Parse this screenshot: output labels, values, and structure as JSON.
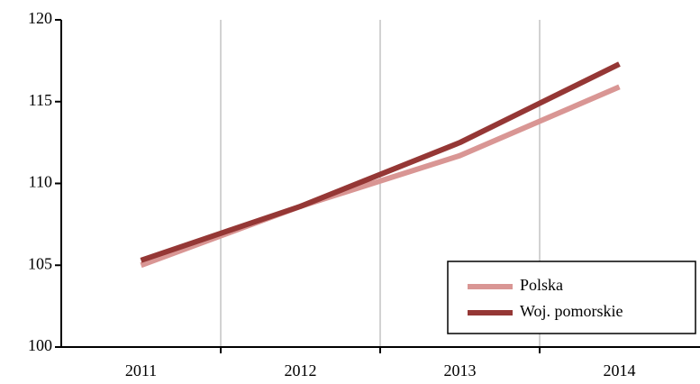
{
  "chart_data": {
    "type": "line",
    "categories": [
      "2011",
      "2012",
      "2013",
      "2014"
    ],
    "series": [
      {
        "name": "Polska",
        "color": "#d99694",
        "values": [
          105.0,
          108.6,
          111.7,
          115.9
        ]
      },
      {
        "name": "Woj. pomorskie",
        "color": "#953735",
        "values": [
          105.3,
          108.6,
          112.5,
          117.3
        ]
      }
    ],
    "ylim": [
      100,
      120
    ],
    "yticks": [
      100,
      105,
      110,
      115,
      120
    ],
    "grid": "vertical",
    "legend": "lower right"
  }
}
